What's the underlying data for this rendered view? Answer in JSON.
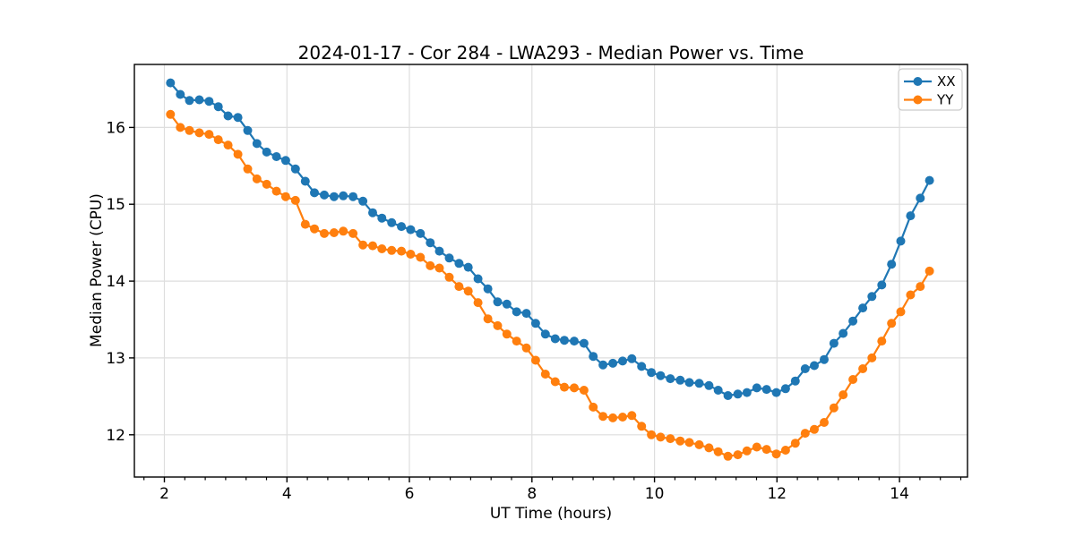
{
  "chart_data": {
    "type": "line",
    "title": "2024-01-17 - Cor 284 - LWA293 - Median Power vs. Time",
    "xlabel": "UT Time (hours)",
    "ylabel": "Median Power (CPU)",
    "xlim": [
      1.51,
      15.11
    ],
    "ylim": [
      11.45,
      16.82
    ],
    "x_ticks": [
      2,
      4,
      6,
      8,
      10,
      12,
      14
    ],
    "y_ticks": [
      12,
      13,
      14,
      15,
      16
    ],
    "x_minor_ticks_per_major": 6,
    "grid": "major-both",
    "grid_color": "#dedede",
    "legend_position": "upper right",
    "marker": "circle",
    "x": [
      2.1,
      2.26,
      2.41,
      2.57,
      2.73,
      2.88,
      3.04,
      3.2,
      3.36,
      3.51,
      3.67,
      3.83,
      3.98,
      4.14,
      4.3,
      4.45,
      4.61,
      4.77,
      4.92,
      5.08,
      5.24,
      5.4,
      5.55,
      5.71,
      5.87,
      6.02,
      6.18,
      6.34,
      6.49,
      6.65,
      6.81,
      6.96,
      7.12,
      7.28,
      7.44,
      7.59,
      7.75,
      7.91,
      8.06,
      8.22,
      8.38,
      8.53,
      8.69,
      8.85,
      9.0,
      9.16,
      9.32,
      9.48,
      9.63,
      9.79,
      9.95,
      10.1,
      10.26,
      10.42,
      10.57,
      10.73,
      10.89,
      11.04,
      11.2,
      11.36,
      11.51,
      11.67,
      11.83,
      11.99,
      12.14,
      12.3,
      12.46,
      12.61,
      12.77,
      12.93,
      13.08,
      13.24,
      13.4,
      13.55,
      13.71,
      13.87,
      14.02,
      14.18,
      14.34,
      14.49
    ],
    "series": [
      {
        "name": "XX",
        "color": "#1f77b4",
        "values": [
          16.58,
          16.43,
          16.35,
          16.36,
          16.34,
          16.27,
          16.15,
          16.13,
          15.96,
          15.79,
          15.68,
          15.62,
          15.57,
          15.46,
          15.3,
          15.15,
          15.12,
          15.1,
          15.11,
          15.1,
          15.04,
          14.89,
          14.82,
          14.76,
          14.71,
          14.67,
          14.62,
          14.5,
          14.39,
          14.3,
          14.23,
          14.18,
          14.03,
          13.9,
          13.73,
          13.7,
          13.6,
          13.58,
          13.45,
          13.31,
          13.25,
          13.23,
          13.22,
          13.19,
          13.02,
          12.91,
          12.93,
          12.96,
          12.99,
          12.89,
          12.81,
          12.77,
          12.73,
          12.71,
          12.68,
          12.67,
          12.64,
          12.58,
          12.51,
          12.53,
          12.55,
          12.61,
          12.59,
          12.55,
          12.6,
          12.7,
          12.86,
          12.9,
          12.98,
          13.19,
          13.32,
          13.48,
          13.65,
          13.8,
          13.95,
          14.22,
          14.52,
          14.85,
          15.08,
          15.31
        ]
      },
      {
        "name": "YY",
        "color": "#ff7f0e",
        "values": [
          16.17,
          16.0,
          15.96,
          15.93,
          15.91,
          15.84,
          15.77,
          15.65,
          15.46,
          15.33,
          15.26,
          15.17,
          15.1,
          15.05,
          14.74,
          14.68,
          14.62,
          14.63,
          14.65,
          14.62,
          14.47,
          14.46,
          14.42,
          14.4,
          14.39,
          14.35,
          14.31,
          14.2,
          14.17,
          14.05,
          13.93,
          13.87,
          13.72,
          13.51,
          13.42,
          13.31,
          13.22,
          13.13,
          12.97,
          12.79,
          12.69,
          12.62,
          12.61,
          12.58,
          12.36,
          12.24,
          12.22,
          12.23,
          12.25,
          12.11,
          12.0,
          11.97,
          11.95,
          11.92,
          11.9,
          11.87,
          11.83,
          11.78,
          11.72,
          11.74,
          11.79,
          11.84,
          11.81,
          11.75,
          11.8,
          11.89,
          12.02,
          12.07,
          12.16,
          12.35,
          12.52,
          12.72,
          12.86,
          13.0,
          13.22,
          13.45,
          13.6,
          13.82,
          13.93,
          14.13
        ]
      }
    ]
  }
}
